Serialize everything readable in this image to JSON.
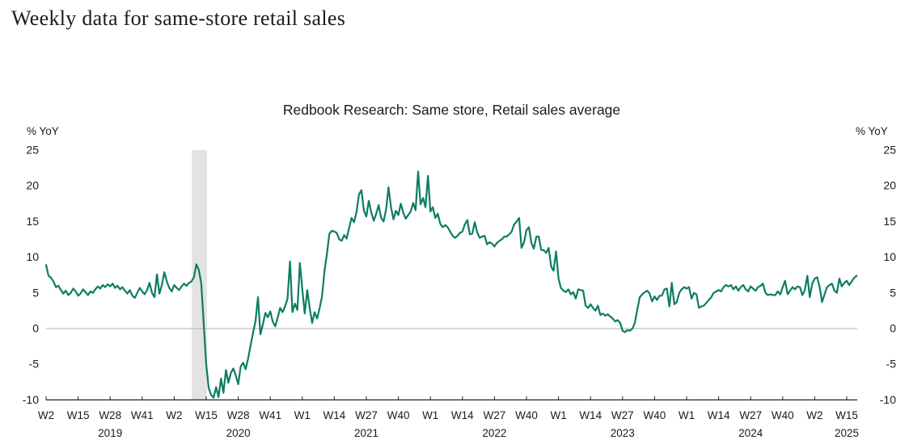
{
  "page": {
    "title": "Weekly data for same-store retail sales"
  },
  "colors": {
    "background": "#ffffff",
    "text": "#1a1a1a",
    "axis": "#222222",
    "zero_line": "#b1b1b1",
    "series_line": "#0e7c64",
    "recession_band": "#e3e3e3"
  },
  "chart_data": {
    "type": "line",
    "title": "Redbook Research: Same store, Retail sales average",
    "y_axis": {
      "label": "% YoY",
      "min": -10,
      "max": 25,
      "ticks": [
        25,
        20,
        15,
        10,
        5,
        0,
        -5,
        -10
      ],
      "zero_gridline": true,
      "mirrored_right_side": true
    },
    "x_axis": {
      "points_per_tick": 13,
      "tick_labels": [
        "W2",
        "W15",
        "W28",
        "W41",
        "W2",
        "W15",
        "W28",
        "W41",
        "W1",
        "W14",
        "W27",
        "W40",
        "W1",
        "W14",
        "W27",
        "W40",
        "W1",
        "W14",
        "W27",
        "W40",
        "W1",
        "W14",
        "W27",
        "W40",
        "W2",
        "W15"
      ],
      "year_labels": [
        {
          "text": "2019",
          "at_tick": 2
        },
        {
          "text": "2020",
          "at_tick": 6
        },
        {
          "text": "2021",
          "at_tick": 10
        },
        {
          "text": "2022",
          "at_tick": 14
        },
        {
          "text": "2023",
          "at_tick": 18
        },
        {
          "text": "2024",
          "at_tick": 22
        },
        {
          "text": "2025",
          "at_tick": 25
        }
      ]
    },
    "recession_band": {
      "from_point": 59.2,
      "to_point": 65.3,
      "color": "#e3e3e3"
    },
    "series": [
      {
        "name": "Redbook Research: Same store, Retail sales average",
        "frequency": "weekly",
        "first_point_label": "2019 W2",
        "color": "#0e7c64",
        "values": [
          8.9,
          7.4,
          7.1,
          6.6,
          5.8,
          6.0,
          5.4,
          4.9,
          5.3,
          4.7,
          5.0,
          5.6,
          5.2,
          4.6,
          4.9,
          5.5,
          5.1,
          4.7,
          5.2,
          5.0,
          5.5,
          5.9,
          5.6,
          6.1,
          5.8,
          6.2,
          5.9,
          6.3,
          5.7,
          6.0,
          5.5,
          5.8,
          5.3,
          4.9,
          5.4,
          4.6,
          4.3,
          5.0,
          5.7,
          5.2,
          4.8,
          5.4,
          6.4,
          5.0,
          4.4,
          7.6,
          4.9,
          6.1,
          7.9,
          6.6,
          5.7,
          5.2,
          6.1,
          5.7,
          5.4,
          5.9,
          6.3,
          6.0,
          6.4,
          6.6,
          7.2,
          9.0,
          8.2,
          6.3,
          0.5,
          -5.0,
          -8.3,
          -9.3,
          -9.7,
          -8.2,
          -9.6,
          -7.0,
          -9.0,
          -5.8,
          -7.6,
          -6.2,
          -5.6,
          -6.6,
          -7.8,
          -5.3,
          -4.8,
          -5.7,
          -4.2,
          -2.4,
          -0.6,
          1.0,
          4.4,
          -0.8,
          0.6,
          2.2,
          1.6,
          2.4,
          1.0,
          0.3,
          1.5,
          2.9,
          2.3,
          3.1,
          4.2,
          9.4,
          2.3,
          3.5,
          2.6,
          9.2,
          5.5,
          2.1,
          5.4,
          2.9,
          0.8,
          2.3,
          1.4,
          2.8,
          4.5,
          8.0,
          10.5,
          13.3,
          13.7,
          13.6,
          13.4,
          12.5,
          12.3,
          13.1,
          12.6,
          14.1,
          15.5,
          14.9,
          16.3,
          18.8,
          19.4,
          16.5,
          15.7,
          17.9,
          16.3,
          15.1,
          16.1,
          17.3,
          15.5,
          15.0,
          16.7,
          19.8,
          17.0,
          15.3,
          16.5,
          15.9,
          17.5,
          16.2,
          15.4,
          15.9,
          16.4,
          17.6,
          16.6,
          22.0,
          17.4,
          18.3,
          17.0,
          21.4,
          16.4,
          17.0,
          15.5,
          16.1,
          14.7,
          14.2,
          14.5,
          14.2,
          13.6,
          13.0,
          12.7,
          13.0,
          13.4,
          13.6,
          14.6,
          15.2,
          13.2,
          13.3,
          14.9,
          13.5,
          12.7,
          12.9,
          13.0,
          11.8,
          12.1,
          11.9,
          11.5,
          12.0,
          12.3,
          12.5,
          12.9,
          12.9,
          13.2,
          13.6,
          14.6,
          15.0,
          15.5,
          11.3,
          12.1,
          13.8,
          14.2,
          12.0,
          11.2,
          12.9,
          12.9,
          11.0,
          11.0,
          10.6,
          11.3,
          8.7,
          8.1,
          10.8,
          7.0,
          5.7,
          5.3,
          5.1,
          5.5,
          4.8,
          5.1,
          4.2,
          5.5,
          5.4,
          5.3,
          3.2,
          2.9,
          3.4,
          2.9,
          2.5,
          3.2,
          1.9,
          2.1,
          1.8,
          2.0,
          1.7,
          1.4,
          1.0,
          1.2,
          0.8,
          -0.3,
          -0.5,
          -0.2,
          -0.3,
          0.0,
          0.8,
          2.7,
          4.4,
          4.8,
          5.1,
          5.3,
          4.9,
          3.8,
          4.5,
          4.0,
          4.6,
          4.6,
          5.5,
          5.6,
          3.1,
          6.4,
          3.4,
          3.7,
          5.0,
          5.5,
          5.8,
          5.6,
          5.8,
          4.2,
          5.0,
          4.8,
          2.9,
          3.1,
          3.2,
          3.6,
          4.0,
          4.4,
          5.0,
          5.2,
          5.4,
          5.2,
          5.8,
          6.1,
          5.9,
          6.1,
          5.5,
          5.9,
          5.3,
          5.8,
          6.1,
          5.5,
          5.2,
          5.9,
          5.6,
          5.3,
          5.8,
          6.0,
          6.3,
          5.0,
          4.7,
          4.8,
          4.7,
          4.7,
          5.2,
          4.8,
          5.8,
          6.7,
          4.8,
          5.3,
          5.8,
          5.5,
          5.9,
          5.8,
          4.7,
          5.4,
          7.4,
          4.4,
          6.3,
          7.0,
          7.2,
          5.8,
          3.7,
          4.8,
          5.8,
          6.1,
          6.3,
          5.3,
          5.0,
          7.0,
          5.9,
          6.4,
          6.7,
          6.1,
          6.6,
          7.1,
          7.4
        ]
      }
    ]
  }
}
